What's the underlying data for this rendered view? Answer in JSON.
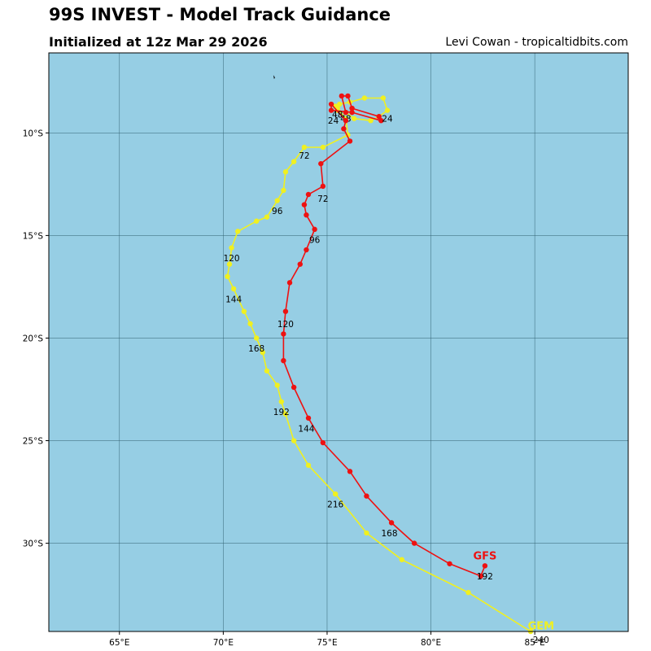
{
  "header": {
    "title": "99S INVEST - Model Track Guidance",
    "subtitle": "Initialized at 12z Mar 29 2026",
    "credit": "Levi Cowan - tropicaltidbits.com"
  },
  "map": {
    "background_color": "#96cee4",
    "grid_color": "#2f5f6f",
    "lon_range": [
      61.6,
      89.5
    ],
    "lat_range": [
      -34.3,
      -6.1
    ],
    "lon_ticks": [
      65,
      70,
      75,
      80,
      85
    ],
    "lat_ticks": [
      -10,
      -15,
      -20,
      -25,
      -30
    ],
    "lon_tick_labels": [
      "65°E",
      "70°E",
      "75°E",
      "80°E",
      "85°E"
    ],
    "lat_tick_labels": [
      "10°S",
      "15°S",
      "20°S",
      "25°S",
      "30°S"
    ],
    "island": {
      "lon": 72.45,
      "lat": -7.3
    }
  },
  "tracks": [
    {
      "name": "GFS",
      "color": "#ee1111",
      "label_position": {
        "lon": 82.6,
        "lat": -30.6
      },
      "points": [
        [
          75.9,
          -9.0
        ],
        [
          75.7,
          -8.2
        ],
        [
          76.0,
          -8.2
        ],
        [
          76.2,
          -8.8
        ],
        [
          77.5,
          -9.2
        ],
        [
          77.6,
          -9.4
        ],
        [
          76.2,
          -9.0
        ],
        [
          75.2,
          -8.9
        ],
        [
          75.2,
          -8.6
        ],
        [
          75.9,
          -9.4
        ],
        [
          75.8,
          -9.8
        ],
        [
          76.1,
          -10.4
        ],
        [
          74.7,
          -11.5
        ],
        [
          74.8,
          -12.6
        ],
        [
          74.1,
          -13.0
        ],
        [
          73.9,
          -13.5
        ],
        [
          74.0,
          -14.0
        ],
        [
          74.4,
          -14.7
        ],
        [
          74.0,
          -15.7
        ],
        [
          73.7,
          -16.4
        ],
        [
          73.2,
          -17.3
        ],
        [
          73.0,
          -18.7
        ],
        [
          72.9,
          -19.8
        ],
        [
          72.9,
          -21.1
        ],
        [
          73.4,
          -22.4
        ],
        [
          74.1,
          -23.9
        ],
        [
          74.8,
          -25.1
        ],
        [
          76.1,
          -26.5
        ],
        [
          76.9,
          -27.7
        ],
        [
          78.1,
          -29.0
        ],
        [
          79.2,
          -30.0
        ],
        [
          80.9,
          -31.0
        ],
        [
          82.4,
          -31.6
        ],
        [
          82.6,
          -31.1
        ]
      ],
      "labels": [
        {
          "text": "24",
          "lon": 77.9,
          "lat": -9.3
        },
        {
          "text": "48",
          "lon": 75.5,
          "lat": -9.1
        },
        {
          "text": "72",
          "lon": 74.8,
          "lat": -13.2
        },
        {
          "text": "96",
          "lon": 74.4,
          "lat": -15.2
        },
        {
          "text": "120",
          "lon": 73.0,
          "lat": -19.3
        },
        {
          "text": "144",
          "lon": 74.0,
          "lat": -24.4
        },
        {
          "text": "168",
          "lon": 78.0,
          "lat": -29.5
        },
        {
          "text": "192",
          "lon": 82.6,
          "lat": -31.6
        }
      ]
    },
    {
      "name": "GEM",
      "color": "#f0f020",
      "label_position": {
        "lon": 85.3,
        "lat": -34.0
      },
      "points": [
        [
          75.4,
          -8.7
        ],
        [
          75.6,
          -8.6
        ],
        [
          76.1,
          -8.5
        ],
        [
          76.8,
          -8.3
        ],
        [
          77.7,
          -8.3
        ],
        [
          77.9,
          -8.9
        ],
        [
          77.5,
          -9.2
        ],
        [
          77.1,
          -9.4
        ],
        [
          76.3,
          -9.3
        ],
        [
          75.9,
          -9.0
        ],
        [
          75.5,
          -8.9
        ],
        [
          75.5,
          -8.8
        ],
        [
          75.9,
          -9.3
        ],
        [
          76.0,
          -10.1
        ],
        [
          74.8,
          -10.7
        ],
        [
          73.9,
          -10.7
        ],
        [
          73.4,
          -11.4
        ],
        [
          73.0,
          -11.9
        ],
        [
          72.9,
          -12.8
        ],
        [
          72.6,
          -13.3
        ],
        [
          72.1,
          -14.1
        ],
        [
          71.6,
          -14.3
        ],
        [
          70.7,
          -14.8
        ],
        [
          70.4,
          -15.6
        ],
        [
          70.3,
          -16.4
        ],
        [
          70.2,
          -17.0
        ],
        [
          70.5,
          -17.6
        ],
        [
          71.0,
          -18.7
        ],
        [
          71.3,
          -19.3
        ],
        [
          71.6,
          -20.0
        ],
        [
          71.9,
          -20.7
        ],
        [
          72.1,
          -21.6
        ],
        [
          72.6,
          -22.3
        ],
        [
          72.8,
          -23.1
        ],
        [
          73.0,
          -23.7
        ],
        [
          73.4,
          -25.0
        ],
        [
          74.1,
          -26.2
        ],
        [
          75.4,
          -27.6
        ],
        [
          76.9,
          -29.5
        ],
        [
          78.6,
          -30.8
        ],
        [
          81.8,
          -32.4
        ],
        [
          84.8,
          -34.3
        ]
      ],
      "labels": [
        {
          "text": "24",
          "lon": 75.3,
          "lat": -9.4
        },
        {
          "text": "48",
          "lon": 75.9,
          "lat": -9.3
        },
        {
          "text": "72",
          "lon": 73.9,
          "lat": -11.1
        },
        {
          "text": "96",
          "lon": 72.6,
          "lat": -13.8
        },
        {
          "text": "120",
          "lon": 70.4,
          "lat": -16.1
        },
        {
          "text": "144",
          "lon": 70.5,
          "lat": -18.1
        },
        {
          "text": "168",
          "lon": 71.6,
          "lat": -20.5
        },
        {
          "text": "192",
          "lon": 72.8,
          "lat": -23.6
        },
        {
          "text": "216",
          "lon": 75.4,
          "lat": -28.1
        },
        {
          "text": "240",
          "lon": 85.3,
          "lat": -34.7
        }
      ]
    }
  ]
}
